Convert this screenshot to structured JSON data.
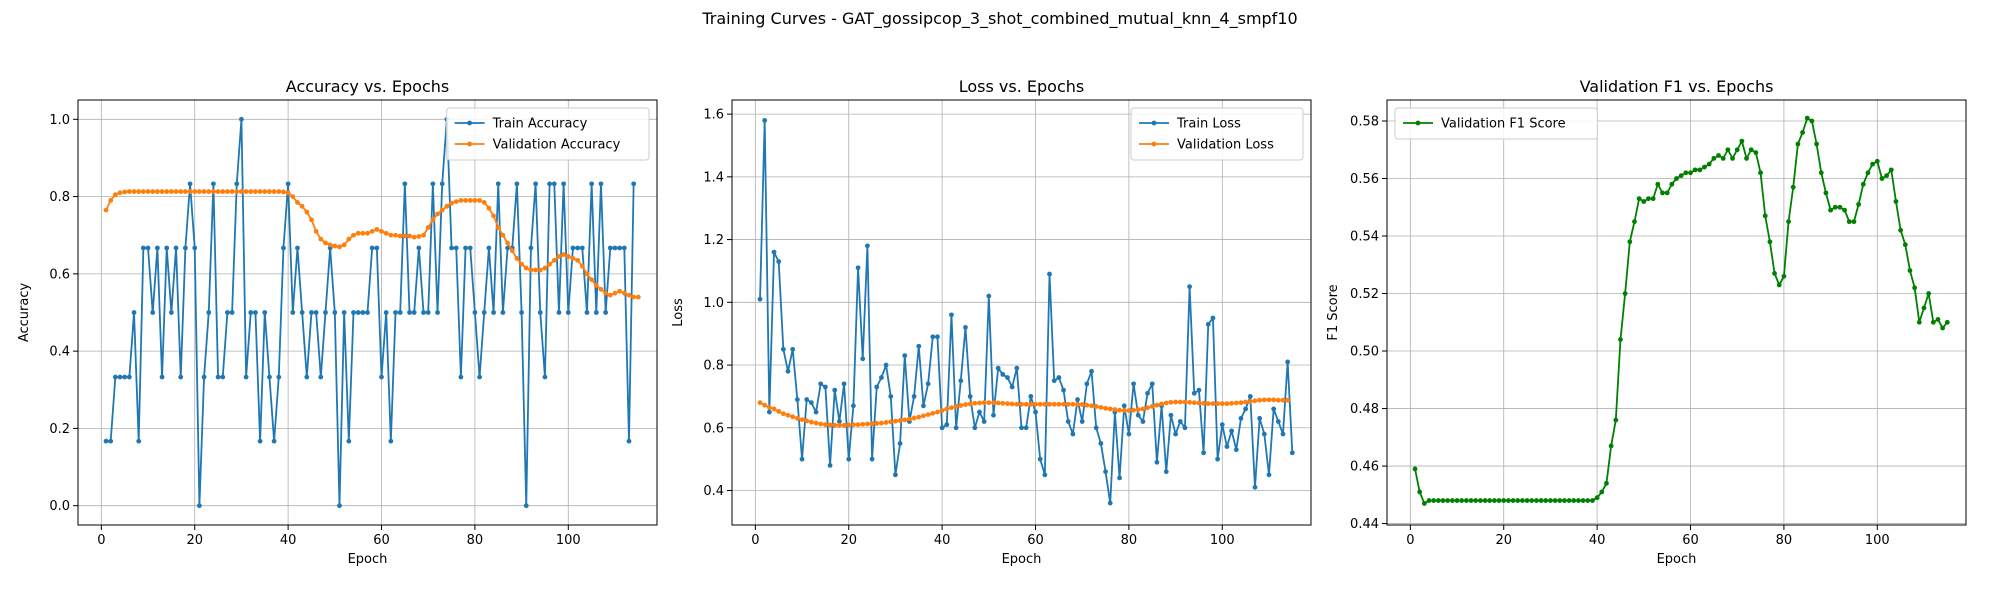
{
  "figure_title": "Training Curves - GAT_gossipcop_3_shot_combined_mutual_knn_4_smpf10",
  "chart_data": [
    {
      "type": "line",
      "title": "Accuracy vs. Epochs",
      "xlabel": "Epoch",
      "ylabel": "Accuracy",
      "xlim": [
        -5,
        119
      ],
      "ylim": [
        -0.05,
        1.05
      ],
      "xticks": [
        0,
        20,
        40,
        60,
        80,
        100
      ],
      "yticks": [
        0.0,
        0.2,
        0.4,
        0.6,
        0.8,
        1.0
      ],
      "ytick_decimals": 1,
      "grid": true,
      "legend": "top-right",
      "x_start": 1,
      "series": [
        {
          "name": "Train Accuracy",
          "color": "#1f77b4",
          "values": [
            0.167,
            0.167,
            0.333,
            0.333,
            0.333,
            0.333,
            0.5,
            0.167,
            0.667,
            0.667,
            0.5,
            0.667,
            0.333,
            0.667,
            0.5,
            0.667,
            0.333,
            0.667,
            0.833,
            0.667,
            0.0,
            0.333,
            0.5,
            0.833,
            0.333,
            0.333,
            0.5,
            0.5,
            0.833,
            1.0,
            0.333,
            0.5,
            0.5,
            0.167,
            0.5,
            0.333,
            0.167,
            0.333,
            0.667,
            0.833,
            0.5,
            0.667,
            0.5,
            0.333,
            0.5,
            0.5,
            0.333,
            0.5,
            0.667,
            0.5,
            0.0,
            0.5,
            0.167,
            0.5,
            0.5,
            0.5,
            0.5,
            0.667,
            0.667,
            0.333,
            0.5,
            0.167,
            0.5,
            0.5,
            0.833,
            0.5,
            0.5,
            0.667,
            0.5,
            0.5,
            0.833,
            0.5,
            0.833,
            1.0,
            0.667,
            0.667,
            0.333,
            0.667,
            0.667,
            0.5,
            0.333,
            0.5,
            0.667,
            0.5,
            0.833,
            0.5,
            0.667,
            0.667,
            0.833,
            0.5,
            0.0,
            0.667,
            0.833,
            0.5,
            0.333,
            0.833,
            0.833,
            0.5,
            0.833,
            0.5,
            0.667,
            0.667,
            0.667,
            0.5,
            0.833,
            0.5,
            0.833,
            0.5,
            0.667,
            0.667,
            0.667,
            0.667,
            0.167,
            0.833
          ]
        },
        {
          "name": "Validation Accuracy",
          "color": "#ff7f0e",
          "values": [
            0.765,
            0.79,
            0.805,
            0.81,
            0.812,
            0.813,
            0.813,
            0.813,
            0.813,
            0.813,
            0.813,
            0.813,
            0.813,
            0.813,
            0.813,
            0.813,
            0.813,
            0.813,
            0.813,
            0.813,
            0.813,
            0.813,
            0.813,
            0.813,
            0.813,
            0.813,
            0.813,
            0.813,
            0.813,
            0.813,
            0.813,
            0.813,
            0.813,
            0.813,
            0.813,
            0.813,
            0.813,
            0.813,
            0.812,
            0.81,
            0.8,
            0.785,
            0.775,
            0.76,
            0.74,
            0.71,
            0.69,
            0.68,
            0.675,
            0.672,
            0.67,
            0.675,
            0.69,
            0.7,
            0.705,
            0.705,
            0.705,
            0.71,
            0.715,
            0.71,
            0.705,
            0.7,
            0.7,
            0.698,
            0.698,
            0.698,
            0.695,
            0.697,
            0.7,
            0.72,
            0.74,
            0.755,
            0.765,
            0.775,
            0.783,
            0.787,
            0.79,
            0.79,
            0.79,
            0.79,
            0.79,
            0.785,
            0.77,
            0.75,
            0.72,
            0.7,
            0.68,
            0.66,
            0.64,
            0.625,
            0.615,
            0.61,
            0.61,
            0.61,
            0.615,
            0.625,
            0.635,
            0.645,
            0.65,
            0.645,
            0.64,
            0.635,
            0.62,
            0.6,
            0.585,
            0.57,
            0.56,
            0.55,
            0.545,
            0.55,
            0.555,
            0.55,
            0.545,
            0.54,
            0.54
          ]
        }
      ]
    },
    {
      "type": "line",
      "title": "Loss vs. Epochs",
      "xlabel": "Epoch",
      "ylabel": "Loss",
      "xlim": [
        -5,
        119
      ],
      "ylim": [
        0.29,
        1.645
      ],
      "xticks": [
        0,
        20,
        40,
        60,
        80,
        100
      ],
      "yticks": [
        0.4,
        0.6,
        0.8,
        1.0,
        1.2,
        1.4,
        1.6
      ],
      "ytick_decimals": 1,
      "grid": true,
      "legend": "top-right",
      "x_start": 1,
      "series": [
        {
          "name": "Train Loss",
          "color": "#1f77b4",
          "values": [
            1.01,
            1.58,
            0.65,
            1.16,
            1.13,
            0.85,
            0.78,
            0.85,
            0.69,
            0.5,
            0.69,
            0.68,
            0.65,
            0.74,
            0.73,
            0.48,
            0.72,
            0.62,
            0.74,
            0.5,
            0.67,
            1.11,
            0.82,
            1.18,
            0.5,
            0.73,
            0.76,
            0.8,
            0.7,
            0.45,
            0.55,
            0.83,
            0.62,
            0.7,
            0.86,
            0.67,
            0.74,
            0.89,
            0.89,
            0.6,
            0.61,
            0.96,
            0.6,
            0.75,
            0.92,
            0.7,
            0.6,
            0.65,
            0.62,
            1.02,
            0.64,
            0.79,
            0.77,
            0.76,
            0.73,
            0.79,
            0.6,
            0.6,
            0.7,
            0.65,
            0.5,
            0.45,
            1.09,
            0.75,
            0.76,
            0.72,
            0.62,
            0.58,
            0.69,
            0.62,
            0.74,
            0.78,
            0.6,
            0.55,
            0.46,
            0.36,
            0.65,
            0.44,
            0.67,
            0.58,
            0.74,
            0.64,
            0.62,
            0.71,
            0.74,
            0.49,
            0.67,
            0.46,
            0.64,
            0.58,
            0.62,
            0.6,
            1.05,
            0.71,
            0.72,
            0.52,
            0.93,
            0.95,
            0.5,
            0.61,
            0.54,
            0.59,
            0.53,
            0.63,
            0.66,
            0.7,
            0.41,
            0.63,
            0.58,
            0.45,
            0.66,
            0.62,
            0.58,
            0.81,
            0.52
          ]
        },
        {
          "name": "Validation Loss",
          "color": "#ff7f0e",
          "values": [
            0.68,
            0.672,
            0.665,
            0.66,
            0.652,
            0.645,
            0.64,
            0.635,
            0.63,
            0.626,
            0.622,
            0.618,
            0.615,
            0.612,
            0.61,
            0.609,
            0.608,
            0.608,
            0.608,
            0.609,
            0.61,
            0.61,
            0.611,
            0.612,
            0.613,
            0.614,
            0.615,
            0.617,
            0.619,
            0.621,
            0.623,
            0.625,
            0.628,
            0.631,
            0.634,
            0.638,
            0.642,
            0.646,
            0.65,
            0.655,
            0.66,
            0.664,
            0.668,
            0.671,
            0.674,
            0.676,
            0.678,
            0.679,
            0.68,
            0.68,
            0.68,
            0.679,
            0.678,
            0.677,
            0.676,
            0.675,
            0.675,
            0.675,
            0.675,
            0.675,
            0.675,
            0.675,
            0.675,
            0.675,
            0.675,
            0.675,
            0.675,
            0.675,
            0.675,
            0.674,
            0.672,
            0.67,
            0.668,
            0.665,
            0.662,
            0.66,
            0.658,
            0.656,
            0.655,
            0.655,
            0.656,
            0.658,
            0.66,
            0.664,
            0.668,
            0.672,
            0.676,
            0.679,
            0.681,
            0.682,
            0.682,
            0.682,
            0.681,
            0.68,
            0.679,
            0.678,
            0.677,
            0.677,
            0.677,
            0.677,
            0.677,
            0.678,
            0.679,
            0.68,
            0.682,
            0.684,
            0.686,
            0.688,
            0.689,
            0.689,
            0.689,
            0.688,
            0.688,
            0.688
          ]
        }
      ]
    },
    {
      "type": "line",
      "title": "Validation F1 vs. Epochs",
      "xlabel": "Epoch",
      "ylabel": "F1 Score",
      "xlim": [
        -5,
        119
      ],
      "ylim": [
        0.4395,
        0.5873
      ],
      "xticks": [
        0,
        20,
        40,
        60,
        80,
        100
      ],
      "yticks": [
        0.44,
        0.46,
        0.48,
        0.5,
        0.52,
        0.54,
        0.56,
        0.58
      ],
      "ytick_decimals": 2,
      "grid": true,
      "legend": "top-left",
      "x_start": 1,
      "series": [
        {
          "name": "Validation F1 Score",
          "color": "#008000",
          "values": [
            0.459,
            0.451,
            0.447,
            0.448,
            0.448,
            0.448,
            0.448,
            0.448,
            0.448,
            0.448,
            0.448,
            0.448,
            0.448,
            0.448,
            0.448,
            0.448,
            0.448,
            0.448,
            0.448,
            0.448,
            0.448,
            0.448,
            0.448,
            0.448,
            0.448,
            0.448,
            0.448,
            0.448,
            0.448,
            0.448,
            0.448,
            0.448,
            0.448,
            0.448,
            0.448,
            0.448,
            0.448,
            0.448,
            0.448,
            0.449,
            0.451,
            0.454,
            0.467,
            0.476,
            0.504,
            0.52,
            0.538,
            0.545,
            0.553,
            0.552,
            0.553,
            0.553,
            0.558,
            0.555,
            0.555,
            0.558,
            0.56,
            0.561,
            0.562,
            0.562,
            0.563,
            0.563,
            0.564,
            0.565,
            0.567,
            0.568,
            0.567,
            0.57,
            0.567,
            0.57,
            0.573,
            0.567,
            0.57,
            0.569,
            0.562,
            0.547,
            0.538,
            0.527,
            0.523,
            0.526,
            0.545,
            0.557,
            0.572,
            0.576,
            0.581,
            0.58,
            0.572,
            0.562,
            0.555,
            0.549,
            0.55,
            0.55,
            0.549,
            0.545,
            0.545,
            0.551,
            0.558,
            0.562,
            0.565,
            0.566,
            0.56,
            0.561,
            0.563,
            0.552,
            0.542,
            0.537,
            0.528,
            0.522,
            0.51,
            0.515,
            0.52,
            0.51,
            0.511,
            0.508,
            0.51
          ]
        }
      ]
    }
  ]
}
